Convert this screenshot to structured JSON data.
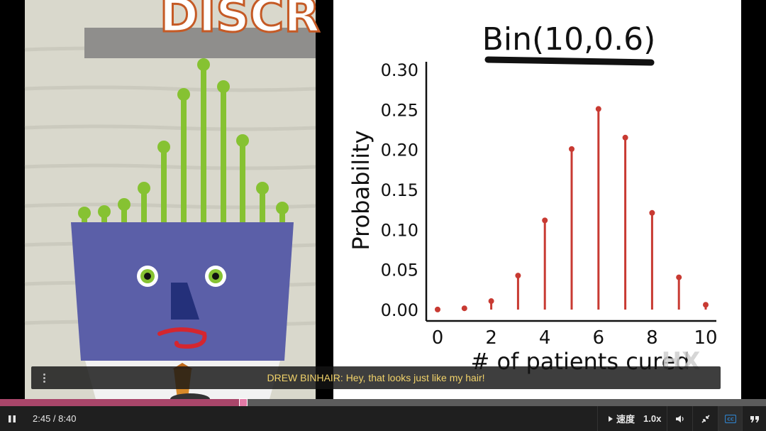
{
  "video": {
    "heading_fragment": "DISCR",
    "chart": {
      "title": "Bin(10,0.6)"
    },
    "watermark": "HX"
  },
  "chart_data": {
    "type": "bar",
    "title": "Bin(10,0.6)",
    "xlabel": "# of patients cured",
    "ylabel": "Probability",
    "x": [
      0,
      1,
      2,
      3,
      4,
      5,
      6,
      7,
      8,
      9,
      10
    ],
    "values": [
      0.0001,
      0.0016,
      0.0106,
      0.0425,
      0.1115,
      0.2007,
      0.2508,
      0.215,
      0.1209,
      0.0403,
      0.006
    ],
    "xticks": [
      "0",
      "2",
      "4",
      "6",
      "8",
      "10"
    ],
    "yticks": [
      "0.00",
      "0.05",
      "0.10",
      "0.15",
      "0.20",
      "0.25",
      "0.30"
    ],
    "ylim": [
      0,
      0.3
    ],
    "color": "#c83a32"
  },
  "caption": {
    "text": "DREW BINHAIR: Hey, that looks just like my hair!"
  },
  "progress": {
    "fraction": 0.3173
  },
  "controls": {
    "time": "2:45 / 8:40",
    "speed_label": "速度",
    "speed_value": "1.0x"
  },
  "colors": {
    "progress_fill": "#a9466a",
    "caption_text": "#f2d36a",
    "hair_green": "#86c232",
    "face_blue": "#5b5fa8"
  }
}
